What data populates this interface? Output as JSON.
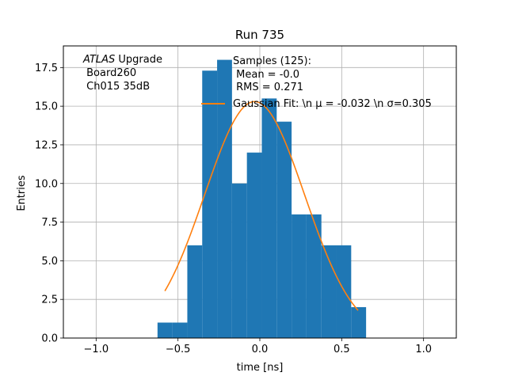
{
  "chart_data": {
    "type": "bar",
    "title": "Run 735",
    "xlabel": "time [ns]",
    "ylabel": "Entries",
    "xlim": [
      -1.2,
      1.2
    ],
    "ylim": [
      0,
      18.9
    ],
    "grid": true,
    "xticks": [
      -1.0,
      -0.5,
      0.0,
      0.5,
      1.0
    ],
    "xtick_labels": [
      "−1.0",
      "−0.5",
      "0.0",
      "0.5",
      "1.0"
    ],
    "yticks": [
      0.0,
      2.5,
      5.0,
      7.5,
      10.0,
      12.5,
      15.0,
      17.5
    ],
    "ytick_labels": [
      "0.0",
      "2.5",
      "5.0",
      "7.5",
      "10.0",
      "12.5",
      "15.0",
      "17.5"
    ],
    "histogram": {
      "color": "#1f77b4",
      "bins": [
        {
          "x0": -0.625,
          "x1": -0.534,
          "count": 1
        },
        {
          "x0": -0.534,
          "x1": -0.443,
          "count": 1
        },
        {
          "x0": -0.443,
          "x1": -0.352,
          "count": 6
        },
        {
          "x0": -0.352,
          "x1": -0.261,
          "count": 17.3
        },
        {
          "x0": -0.261,
          "x1": -0.17,
          "count": 18
        },
        {
          "x0": -0.17,
          "x1": -0.079,
          "count": 10
        },
        {
          "x0": -0.079,
          "x1": 0.012,
          "count": 12
        },
        {
          "x0": 0.012,
          "x1": 0.103,
          "count": 15.5
        },
        {
          "x0": 0.103,
          "x1": 0.194,
          "count": 14
        },
        {
          "x0": 0.194,
          "x1": 0.285,
          "count": 8
        },
        {
          "x0": 0.285,
          "x1": 0.376,
          "count": 8
        },
        {
          "x0": 0.376,
          "x1": 0.467,
          "count": 6
        },
        {
          "x0": 0.467,
          "x1": 0.558,
          "count": 6
        },
        {
          "x0": 0.558,
          "x1": 0.649,
          "count": 2
        }
      ]
    },
    "fit": {
      "name": "Gaussian Fit",
      "color": "#ff7f0e",
      "mu": -0.032,
      "sigma": 0.305,
      "amplitude": 15.3,
      "x_range": [
        -0.58,
        0.6
      ]
    },
    "legend": {
      "position": "top-right",
      "entries": [
        {
          "label": "Samples (125):",
          "kind": "text"
        },
        {
          "label": " Mean = -0.0",
          "kind": "text"
        },
        {
          "label": " RMS = 0.271",
          "kind": "text"
        },
        {
          "label": "Gaussian Fit: \\n μ = -0.032 \\n σ=0.305",
          "kind": "line"
        }
      ]
    },
    "annotation": {
      "italic_part": "ATLAS",
      "rest_line1": " Upgrade",
      "line2": " Board260",
      "line3": " Ch015 35dB"
    }
  }
}
